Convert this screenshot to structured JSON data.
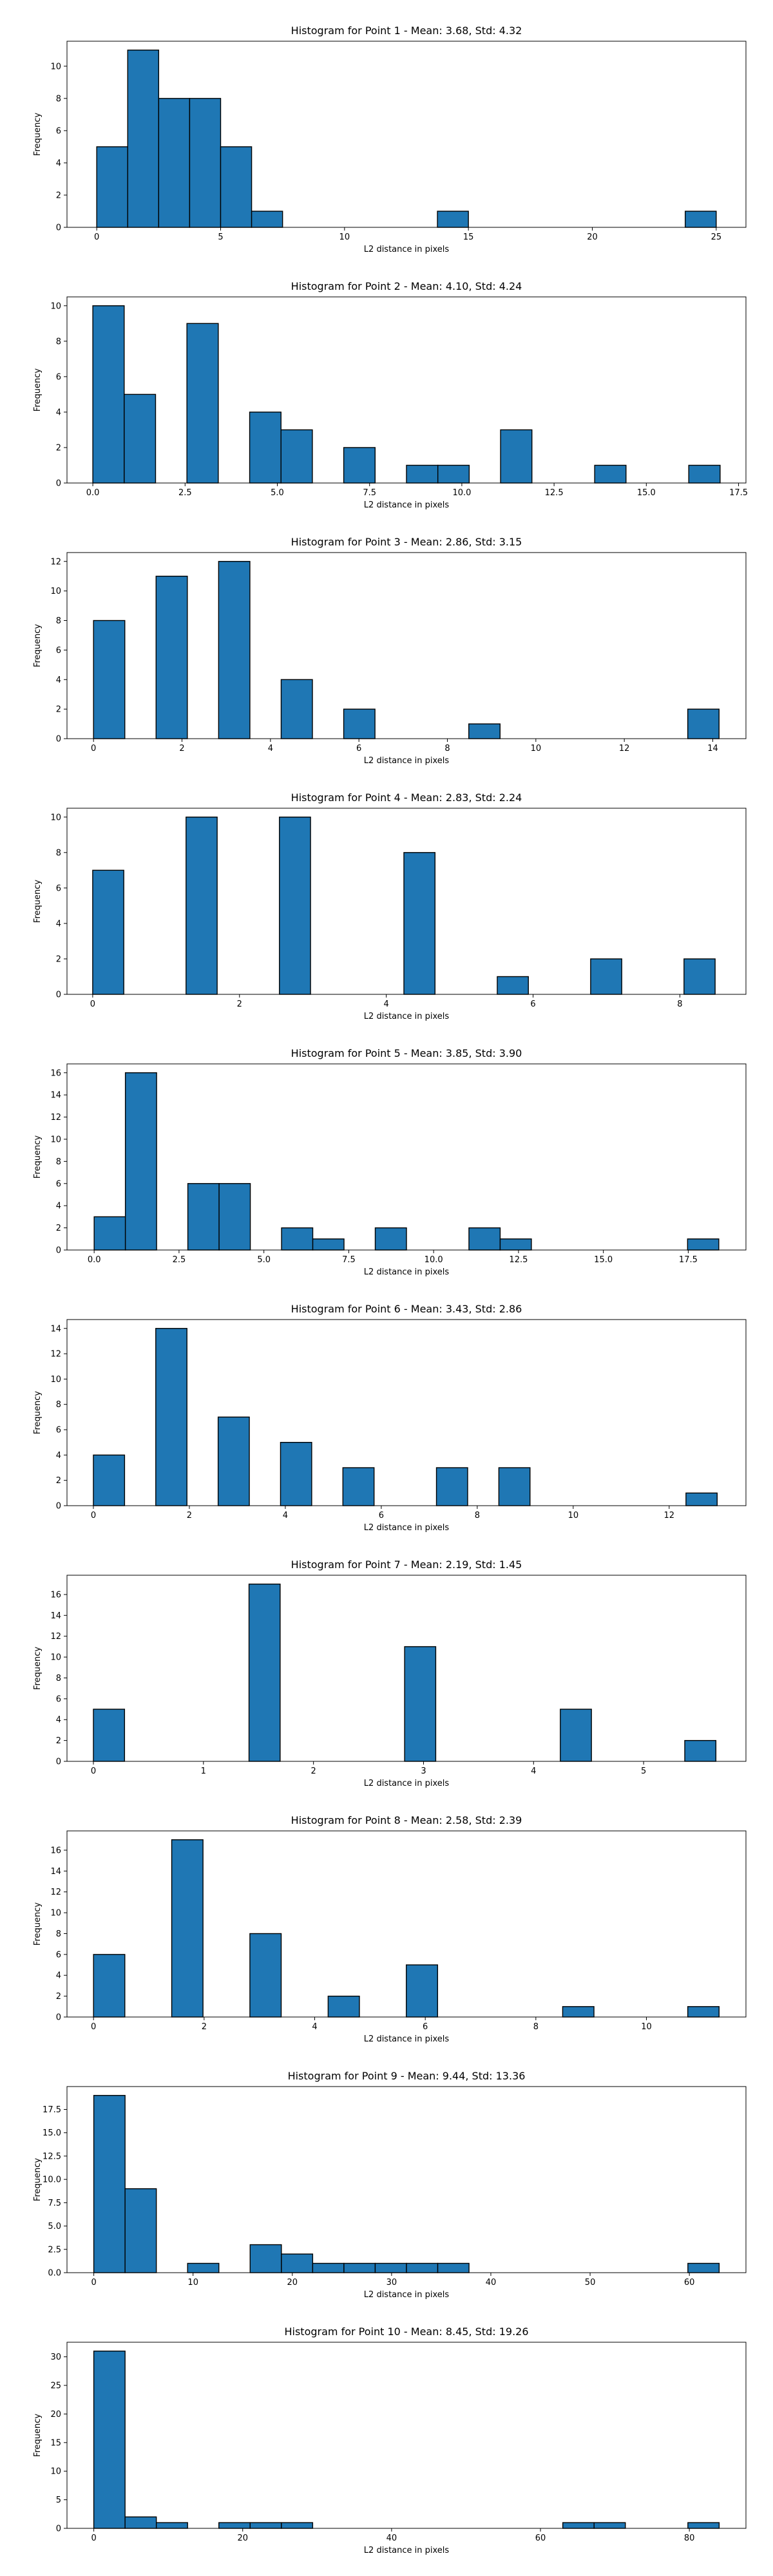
{
  "chart_data": [
    {
      "type": "bar",
      "title": "Histogram for Point 1 - Mean: 3.68, Std: 4.32",
      "xlabel": "L2 distance in pixels",
      "ylabel": "Frequency",
      "bins": [
        [
          0,
          1.25,
          5
        ],
        [
          1.25,
          2.5,
          11
        ],
        [
          2.5,
          3.75,
          8
        ],
        [
          3.75,
          5,
          8
        ],
        [
          5,
          6.25,
          5
        ],
        [
          6.25,
          7.5,
          1
        ],
        [
          13.75,
          15,
          1
        ],
        [
          23.75,
          25,
          1
        ]
      ],
      "xlim": [
        -1.2,
        26.2
      ],
      "ylim": [
        0,
        11.55
      ],
      "xticks": [
        {
          "v": 0,
          "label": "0"
        },
        {
          "v": 5,
          "label": "5"
        },
        {
          "v": 10,
          "label": "10"
        },
        {
          "v": 15,
          "label": "15"
        },
        {
          "v": 20,
          "label": "20"
        },
        {
          "v": 25,
          "label": "25"
        }
      ],
      "yticks": [
        {
          "v": 0,
          "label": "0"
        },
        {
          "v": 2,
          "label": "2"
        },
        {
          "v": 4,
          "label": "4"
        },
        {
          "v": 6,
          "label": "6"
        },
        {
          "v": 8,
          "label": "8"
        },
        {
          "v": 10,
          "label": "10"
        }
      ],
      "grid": false
    },
    {
      "type": "bar",
      "title": "Histogram for Point 2 - Mean: 4.10, Std: 4.24",
      "xlabel": "L2 distance in pixels",
      "ylabel": "Frequency",
      "bins": [
        [
          0,
          0.85,
          10
        ],
        [
          0.85,
          1.7,
          5
        ],
        [
          2.55,
          3.4,
          9
        ],
        [
          4.25,
          5.1,
          4
        ],
        [
          5.1,
          5.95,
          3
        ],
        [
          6.8,
          7.65,
          2
        ],
        [
          8.5,
          9.35,
          1
        ],
        [
          9.35,
          10.2,
          1
        ],
        [
          11.05,
          11.9,
          3
        ],
        [
          13.6,
          14.45,
          1
        ],
        [
          16.15,
          17,
          1
        ]
      ],
      "xlim": [
        -0.7,
        17.7
      ],
      "ylim": [
        0,
        10.5
      ],
      "xticks": [
        {
          "v": 0,
          "label": "0.0"
        },
        {
          "v": 2.5,
          "label": "2.5"
        },
        {
          "v": 5,
          "label": "5.0"
        },
        {
          "v": 7.5,
          "label": "7.5"
        },
        {
          "v": 10,
          "label": "10.0"
        },
        {
          "v": 12.5,
          "label": "12.5"
        },
        {
          "v": 15,
          "label": "15.0"
        },
        {
          "v": 17.5,
          "label": "17.5"
        }
      ],
      "yticks": [
        {
          "v": 0,
          "label": "0"
        },
        {
          "v": 2,
          "label": "2"
        },
        {
          "v": 4,
          "label": "4"
        },
        {
          "v": 6,
          "label": "6"
        },
        {
          "v": 8,
          "label": "8"
        },
        {
          "v": 10,
          "label": "10"
        }
      ],
      "grid": false
    },
    {
      "type": "bar",
      "title": "Histogram for Point 3 - Mean: 2.86, Std: 3.15",
      "xlabel": "L2 distance in pixels",
      "ylabel": "Frequency",
      "bins": [
        [
          0,
          0.707,
          8
        ],
        [
          1.414,
          2.121,
          11
        ],
        [
          2.828,
          3.535,
          12
        ],
        [
          4.242,
          4.949,
          4
        ],
        [
          5.656,
          6.363,
          2
        ],
        [
          8.484,
          9.191,
          1
        ],
        [
          13.435,
          14.142,
          2
        ]
      ],
      "xlim": [
        -0.6,
        14.75
      ],
      "ylim": [
        0,
        12.6
      ],
      "xticks": [
        {
          "v": 0,
          "label": "0"
        },
        {
          "v": 2,
          "label": "2"
        },
        {
          "v": 4,
          "label": "4"
        },
        {
          "v": 6,
          "label": "6"
        },
        {
          "v": 8,
          "label": "8"
        },
        {
          "v": 10,
          "label": "10"
        },
        {
          "v": 12,
          "label": "12"
        },
        {
          "v": 14,
          "label": "14"
        }
      ],
      "yticks": [
        {
          "v": 0,
          "label": "0"
        },
        {
          "v": 2,
          "label": "2"
        },
        {
          "v": 4,
          "label": "4"
        },
        {
          "v": 6,
          "label": "6"
        },
        {
          "v": 8,
          "label": "8"
        },
        {
          "v": 10,
          "label": "10"
        },
        {
          "v": 12,
          "label": "12"
        }
      ],
      "grid": false
    },
    {
      "type": "bar",
      "title": "Histogram for Point 4 - Mean: 2.83, Std: 2.24",
      "xlabel": "L2 distance in pixels",
      "ylabel": "Frequency",
      "bins": [
        [
          0,
          0.424,
          7
        ],
        [
          1.272,
          1.696,
          10
        ],
        [
          2.544,
          2.968,
          10
        ],
        [
          4.24,
          4.664,
          8
        ],
        [
          5.512,
          5.936,
          1
        ],
        [
          6.784,
          7.208,
          2
        ],
        [
          8.056,
          8.48,
          2
        ]
      ],
      "xlim": [
        -0.35,
        8.9
      ],
      "ylim": [
        0,
        10.5
      ],
      "xticks": [
        {
          "v": 0,
          "label": "0"
        },
        {
          "v": 2,
          "label": "2"
        },
        {
          "v": 4,
          "label": "4"
        },
        {
          "v": 6,
          "label": "6"
        },
        {
          "v": 8,
          "label": "8"
        }
      ],
      "yticks": [
        {
          "v": 0,
          "label": "0"
        },
        {
          "v": 2,
          "label": "2"
        },
        {
          "v": 4,
          "label": "4"
        },
        {
          "v": 6,
          "label": "6"
        },
        {
          "v": 8,
          "label": "8"
        },
        {
          "v": 10,
          "label": "10"
        }
      ],
      "grid": false
    },
    {
      "type": "bar",
      "title": "Histogram for Point 5 - Mean: 3.85, Std: 3.90",
      "xlabel": "L2 distance in pixels",
      "ylabel": "Frequency",
      "bins": [
        [
          0,
          0.92,
          3
        ],
        [
          0.92,
          1.84,
          16
        ],
        [
          2.76,
          3.68,
          6
        ],
        [
          3.68,
          4.6,
          6
        ],
        [
          5.52,
          6.44,
          2
        ],
        [
          6.44,
          7.36,
          1
        ],
        [
          8.28,
          9.2,
          2
        ],
        [
          11.04,
          11.96,
          2
        ],
        [
          11.96,
          12.88,
          1
        ],
        [
          17.48,
          18.4,
          1
        ]
      ],
      "xlim": [
        -0.8,
        19.2
      ],
      "ylim": [
        0,
        16.8
      ],
      "xticks": [
        {
          "v": 0,
          "label": "0.0"
        },
        {
          "v": 2.5,
          "label": "2.5"
        },
        {
          "v": 5,
          "label": "5.0"
        },
        {
          "v": 7.5,
          "label": "7.5"
        },
        {
          "v": 10,
          "label": "10.0"
        },
        {
          "v": 12.5,
          "label": "12.5"
        },
        {
          "v": 15,
          "label": "15.0"
        },
        {
          "v": 17.5,
          "label": "17.5"
        }
      ],
      "yticks": [
        {
          "v": 0,
          "label": "0"
        },
        {
          "v": 2,
          "label": "2"
        },
        {
          "v": 4,
          "label": "4"
        },
        {
          "v": 6,
          "label": "6"
        },
        {
          "v": 8,
          "label": "8"
        },
        {
          "v": 10,
          "label": "10"
        },
        {
          "v": 12,
          "label": "12"
        },
        {
          "v": 14,
          "label": "14"
        },
        {
          "v": 16,
          "label": "16"
        }
      ],
      "grid": false
    },
    {
      "type": "bar",
      "title": "Histogram for Point 6 - Mean: 3.43, Std: 2.86",
      "xlabel": "L2 distance in pixels",
      "ylabel": "Frequency",
      "bins": [
        [
          0,
          0.65,
          4
        ],
        [
          1.3,
          1.95,
          14
        ],
        [
          2.6,
          3.25,
          7
        ],
        [
          3.9,
          4.55,
          5
        ],
        [
          5.2,
          5.85,
          3
        ],
        [
          7.15,
          7.8,
          3
        ],
        [
          8.45,
          9.1,
          3
        ],
        [
          12.35,
          13,
          1
        ]
      ],
      "xlim": [
        -0.55,
        13.6
      ],
      "ylim": [
        0,
        14.7
      ],
      "xticks": [
        {
          "v": 0,
          "label": "0"
        },
        {
          "v": 2,
          "label": "2"
        },
        {
          "v": 4,
          "label": "4"
        },
        {
          "v": 6,
          "label": "6"
        },
        {
          "v": 8,
          "label": "8"
        },
        {
          "v": 10,
          "label": "10"
        },
        {
          "v": 12,
          "label": "12"
        }
      ],
      "yticks": [
        {
          "v": 0,
          "label": "0"
        },
        {
          "v": 2,
          "label": "2"
        },
        {
          "v": 4,
          "label": "4"
        },
        {
          "v": 6,
          "label": "6"
        },
        {
          "v": 8,
          "label": "8"
        },
        {
          "v": 10,
          "label": "10"
        },
        {
          "v": 12,
          "label": "12"
        },
        {
          "v": 14,
          "label": "14"
        }
      ],
      "grid": false
    },
    {
      "type": "bar",
      "title": "Histogram for Point 7 - Mean: 2.19, Std: 1.45",
      "xlabel": "L2 distance in pixels",
      "ylabel": "Frequency",
      "bins": [
        [
          0,
          0.283,
          5
        ],
        [
          1.414,
          1.697,
          17
        ],
        [
          2.828,
          3.111,
          11
        ],
        [
          4.243,
          4.526,
          5
        ],
        [
          5.374,
          5.657,
          2
        ]
      ],
      "xlim": [
        -0.24,
        5.93
      ],
      "ylim": [
        0,
        17.85
      ],
      "xticks": [
        {
          "v": 0,
          "label": "0"
        },
        {
          "v": 1,
          "label": "1"
        },
        {
          "v": 2,
          "label": "2"
        },
        {
          "v": 3,
          "label": "3"
        },
        {
          "v": 4,
          "label": "4"
        },
        {
          "v": 5,
          "label": "5"
        }
      ],
      "yticks": [
        {
          "v": 0,
          "label": "0"
        },
        {
          "v": 2,
          "label": "2"
        },
        {
          "v": 4,
          "label": "4"
        },
        {
          "v": 6,
          "label": "6"
        },
        {
          "v": 8,
          "label": "8"
        },
        {
          "v": 10,
          "label": "10"
        },
        {
          "v": 12,
          "label": "12"
        },
        {
          "v": 14,
          "label": "14"
        },
        {
          "v": 16,
          "label": "16"
        }
      ],
      "grid": false
    },
    {
      "type": "bar",
      "title": "Histogram for Point 8 - Mean: 2.58, Std: 2.39",
      "xlabel": "L2 distance in pixels",
      "ylabel": "Frequency",
      "bins": [
        [
          0,
          0.566,
          6
        ],
        [
          1.414,
          1.98,
          17
        ],
        [
          2.828,
          3.394,
          8
        ],
        [
          4.243,
          4.809,
          2
        ],
        [
          5.657,
          6.223,
          5
        ],
        [
          8.485,
          9.051,
          1
        ],
        [
          10.748,
          11.314,
          1
        ]
      ],
      "xlim": [
        -0.48,
        11.8
      ],
      "ylim": [
        0,
        17.85
      ],
      "xticks": [
        {
          "v": 0,
          "label": "0"
        },
        {
          "v": 2,
          "label": "2"
        },
        {
          "v": 4,
          "label": "4"
        },
        {
          "v": 6,
          "label": "6"
        },
        {
          "v": 8,
          "label": "8"
        },
        {
          "v": 10,
          "label": "10"
        }
      ],
      "yticks": [
        {
          "v": 0,
          "label": "0"
        },
        {
          "v": 2,
          "label": "2"
        },
        {
          "v": 4,
          "label": "4"
        },
        {
          "v": 6,
          "label": "6"
        },
        {
          "v": 8,
          "label": "8"
        },
        {
          "v": 10,
          "label": "10"
        },
        {
          "v": 12,
          "label": "12"
        },
        {
          "v": 14,
          "label": "14"
        },
        {
          "v": 16,
          "label": "16"
        }
      ],
      "grid": false
    },
    {
      "type": "bar",
      "title": "Histogram for Point 9 - Mean: 9.44, Std: 13.36",
      "xlabel": "L2 distance in pixels",
      "ylabel": "Frequency",
      "bins": [
        [
          0,
          3.15,
          19
        ],
        [
          3.15,
          6.3,
          9
        ],
        [
          9.45,
          12.6,
          1
        ],
        [
          15.75,
          18.9,
          3
        ],
        [
          18.9,
          22.05,
          2
        ],
        [
          22.05,
          25.2,
          1
        ],
        [
          25.2,
          28.35,
          1
        ],
        [
          28.35,
          31.5,
          1
        ],
        [
          31.5,
          34.65,
          1
        ],
        [
          34.65,
          37.8,
          1
        ],
        [
          59.85,
          63,
          1
        ]
      ],
      "xlim": [
        -2.7,
        65.7
      ],
      "ylim": [
        0,
        19.95
      ],
      "xticks": [
        {
          "v": 0,
          "label": "0"
        },
        {
          "v": 10,
          "label": "10"
        },
        {
          "v": 20,
          "label": "20"
        },
        {
          "v": 30,
          "label": "30"
        },
        {
          "v": 40,
          "label": "40"
        },
        {
          "v": 50,
          "label": "50"
        },
        {
          "v": 60,
          "label": "60"
        }
      ],
      "yticks": [
        {
          "v": 0,
          "label": "0.0"
        },
        {
          "v": 2.5,
          "label": "2.5"
        },
        {
          "v": 5,
          "label": "5.0"
        },
        {
          "v": 7.5,
          "label": "7.5"
        },
        {
          "v": 10,
          "label": "10.0"
        },
        {
          "v": 12.5,
          "label": "12.5"
        },
        {
          "v": 15,
          "label": "15.0"
        },
        {
          "v": 17.5,
          "label": "17.5"
        }
      ],
      "grid": false
    },
    {
      "type": "bar",
      "title": "Histogram for Point 10 - Mean: 8.45, Std: 19.26",
      "xlabel": "L2 distance in pixels",
      "ylabel": "Frequency",
      "bins": [
        [
          0,
          4.2,
          31
        ],
        [
          4.2,
          8.4,
          2
        ],
        [
          8.4,
          12.6,
          1
        ],
        [
          16.8,
          21,
          1
        ],
        [
          21,
          25.2,
          1
        ],
        [
          25.2,
          29.4,
          1
        ],
        [
          63,
          67.2,
          1
        ],
        [
          67.2,
          71.4,
          1
        ],
        [
          79.8,
          84,
          1
        ]
      ],
      "xlim": [
        -3.6,
        87.6
      ],
      "ylim": [
        0,
        32.55
      ],
      "xticks": [
        {
          "v": 0,
          "label": "0"
        },
        {
          "v": 20,
          "label": "20"
        },
        {
          "v": 40,
          "label": "40"
        },
        {
          "v": 60,
          "label": "60"
        },
        {
          "v": 80,
          "label": "80"
        }
      ],
      "yticks": [
        {
          "v": 0,
          "label": "0"
        },
        {
          "v": 5,
          "label": "5"
        },
        {
          "v": 10,
          "label": "10"
        },
        {
          "v": 15,
          "label": "15"
        },
        {
          "v": 20,
          "label": "20"
        },
        {
          "v": 25,
          "label": "25"
        },
        {
          "v": 30,
          "label": "30"
        }
      ],
      "grid": false
    }
  ]
}
